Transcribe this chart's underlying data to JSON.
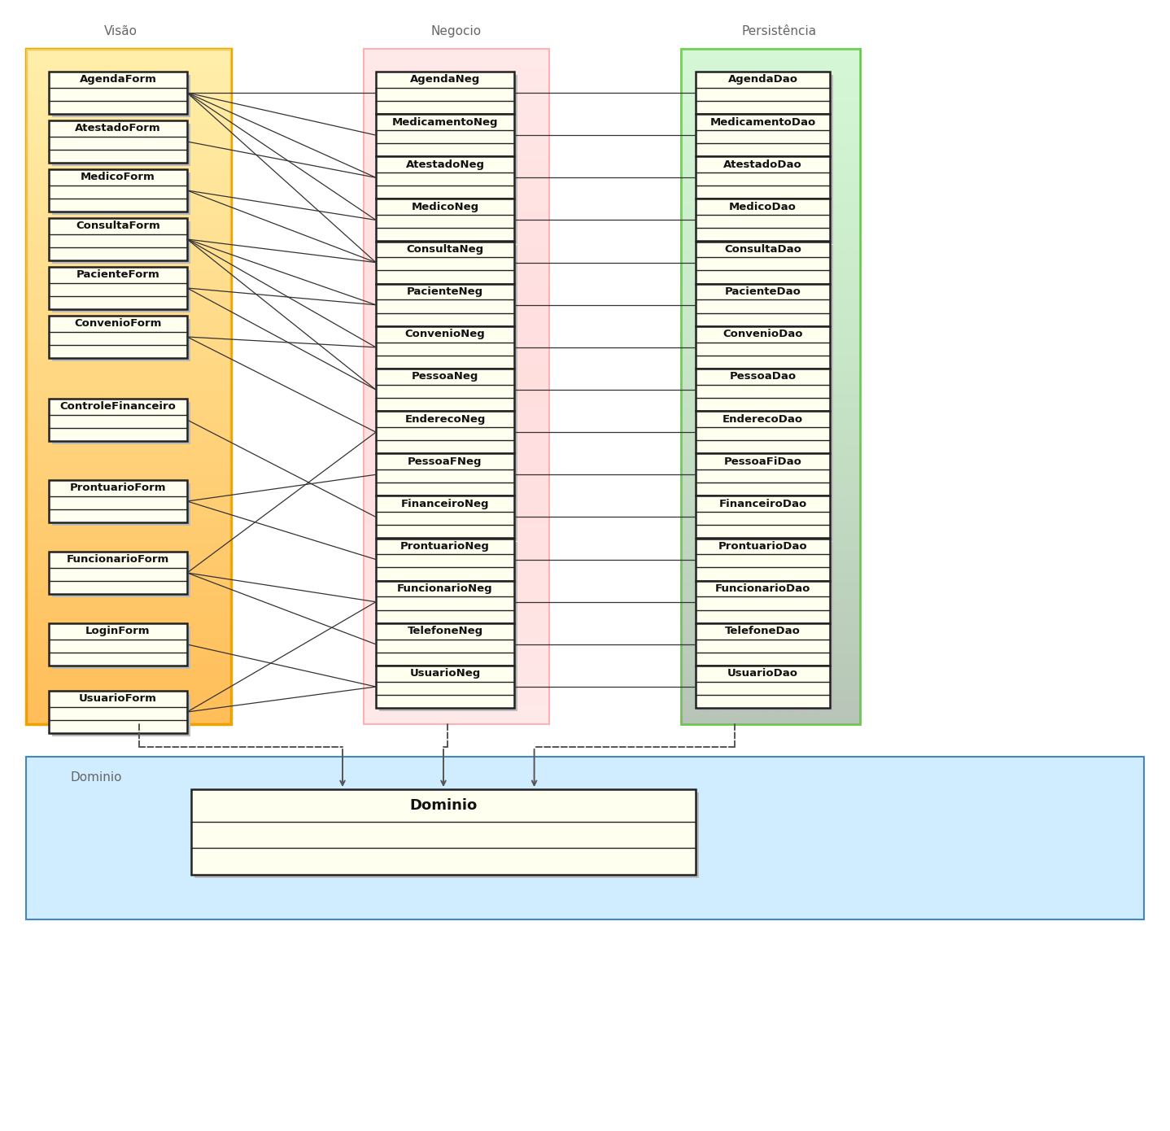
{
  "bg_color": "#ffffff",
  "visao_bg": "#fffacd",
  "visao_border": "#e8a800",
  "visao_gradient_top": "#fffef5",
  "visao_gradient_bot": "#ffc820",
  "negocio_bg": "#fff0f0",
  "negocio_border": "#ffb0b0",
  "persistencia_bg": "#f0fff0",
  "persistencia_border": "#66cc44",
  "dominio_bg": "#d0ecff",
  "dominio_border": "#4488bb",
  "class_fill": "#fffff0",
  "class_border": "#222222",
  "shadow_color": "#bbbbbb",
  "layer_label_color": "#666666",
  "layer_labels": [
    "Visão",
    "Negocio",
    "Persistência"
  ],
  "dominio_label": "Dominio",
  "visao_classes": [
    "AgendaForm",
    "AtestadoForm",
    "MedicoForm",
    "ConsultaForm",
    "PacienteForm",
    "ConvenioForm",
    "ControleFinanceiro",
    "ProntuarioForm",
    "FuncionarioForm",
    "LoginForm",
    "UsuarioForm"
  ],
  "negocio_classes": [
    "AgendaNeg",
    "MedicamentoNeg",
    "AtestadoNeg",
    "MedicoNeg",
    "ConsultaNeg",
    "PacienteNeg",
    "ConvenioNeg",
    "PessoaNeg",
    "EnderecoNeg",
    "PessoaFNeg",
    "FinanceiroNeg",
    "ProntuarioNeg",
    "FuncionarioNeg",
    "TelefoneNeg",
    "UsuarioNeg"
  ],
  "persistencia_classes": [
    "AgendaDao",
    "MedicamentoDao",
    "AtestadoDao",
    "MedicoDao",
    "ConsultaDao",
    "PacienteDao",
    "ConvenioDao",
    "PessoaDao",
    "EnderecoDao",
    "PessoaFiDao",
    "FinanceiroDao",
    "ProntuarioDao",
    "FuncionarioDao",
    "TelefoneDao",
    "UsuarioDao"
  ],
  "dominio_class": "Dominio",
  "connections": [
    [
      "AgendaForm",
      "AgendaNeg"
    ],
    [
      "AgendaForm",
      "MedicamentoNeg"
    ],
    [
      "AgendaForm",
      "AtestadoNeg"
    ],
    [
      "AgendaForm",
      "MedicoNeg"
    ],
    [
      "AgendaForm",
      "ConsultaNeg"
    ],
    [
      "AtestadoForm",
      "AtestadoNeg"
    ],
    [
      "MedicoForm",
      "MedicoNeg"
    ],
    [
      "MedicoForm",
      "ConsultaNeg"
    ],
    [
      "ConsultaForm",
      "ConsultaNeg"
    ],
    [
      "ConsultaForm",
      "PacienteNeg"
    ],
    [
      "ConsultaForm",
      "ConvenioNeg"
    ],
    [
      "ConsultaForm",
      "PessoaNeg"
    ],
    [
      "PacienteForm",
      "PacienteNeg"
    ],
    [
      "PacienteForm",
      "PessoaNeg"
    ],
    [
      "ConvenioForm",
      "ConvenioNeg"
    ],
    [
      "ConvenioForm",
      "EnderecoNeg"
    ],
    [
      "ControleFinanceiro",
      "FinanceiroNeg"
    ],
    [
      "ProntuarioForm",
      "ProntuarioNeg"
    ],
    [
      "ProntuarioForm",
      "PessoaFNeg"
    ],
    [
      "FuncionarioForm",
      "FuncionarioNeg"
    ],
    [
      "FuncionarioForm",
      "TelefoneNeg"
    ],
    [
      "FuncionarioForm",
      "EnderecoNeg"
    ],
    [
      "LoginForm",
      "UsuarioNeg"
    ],
    [
      "UsuarioForm",
      "UsuarioNeg"
    ],
    [
      "UsuarioForm",
      "FuncionarioNeg"
    ]
  ],
  "neg_dao_connections": [
    [
      "AgendaNeg",
      "AgendaDao"
    ],
    [
      "MedicamentoNeg",
      "MedicamentoDao"
    ],
    [
      "AtestadoNeg",
      "AtestadoDao"
    ],
    [
      "MedicoNeg",
      "MedicoDao"
    ],
    [
      "ConsultaNeg",
      "ConsultaDao"
    ],
    [
      "PacienteNeg",
      "PacienteDao"
    ],
    [
      "ConvenioNeg",
      "ConvenioDao"
    ],
    [
      "PessoaNeg",
      "PessoaDao"
    ],
    [
      "EnderecoNeg",
      "EnderecoDao"
    ],
    [
      "PessoaFNeg",
      "PessoaFiDao"
    ],
    [
      "FinanceiroNeg",
      "FinanceiroDao"
    ],
    [
      "ProntuarioNeg",
      "ProntuarioDao"
    ],
    [
      "FuncionarioNeg",
      "FuncionarioDao"
    ],
    [
      "TelefoneNeg",
      "TelefoneDao"
    ],
    [
      "UsuarioNeg",
      "UsuarioDao"
    ]
  ]
}
